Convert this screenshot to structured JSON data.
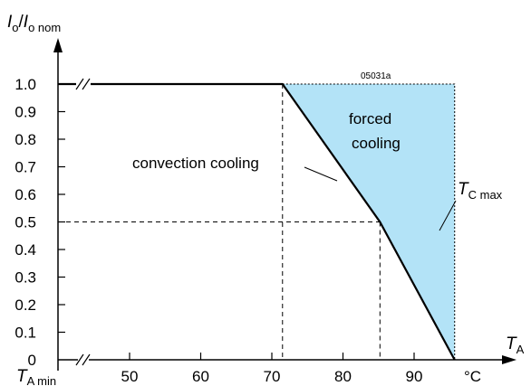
{
  "chart_data": {
    "type": "line",
    "title": "",
    "ylabel": {
      "main": "I",
      "sub_o": "o",
      "slash": "/",
      "main2": "I",
      "sub2": "o nom"
    },
    "xlabel": {
      "main": "T",
      "sub": "A"
    },
    "x_unit": "°C",
    "x_start_label": {
      "main": "T",
      "sub": "A min"
    },
    "figure_code": "05031a",
    "x_ticks": [
      50,
      60,
      70,
      80,
      90
    ],
    "y_ticks": [
      "1.0",
      "0.9",
      "0.8",
      "0.7",
      "0.6",
      "0.5",
      "0.4",
      "0.3",
      "0.2",
      "0.1",
      "0"
    ],
    "xlim": [
      40,
      100
    ],
    "ylim": [
      0,
      1.0
    ],
    "series": [
      {
        "name": "convection cooling",
        "x": [
          40,
          71.5,
          85.2,
          95.7
        ],
        "y": [
          1.0,
          1.0,
          0.5,
          0.0
        ]
      }
    ],
    "forced_cooling_region": {
      "label_line1": "forced",
      "label_line2": "cooling",
      "color": "#b3e3f7",
      "x": [
        71.5,
        95.7,
        95.7,
        85.2
      ],
      "y": [
        1.0,
        1.0,
        0.0,
        0.5
      ]
    },
    "tc_max": {
      "main": "T",
      "sub": "C max",
      "x": 95.7
    },
    "reference_lines": [
      {
        "x": 71.5,
        "y": 1.0
      },
      {
        "x": 85.2,
        "y": 0.5
      }
    ]
  }
}
